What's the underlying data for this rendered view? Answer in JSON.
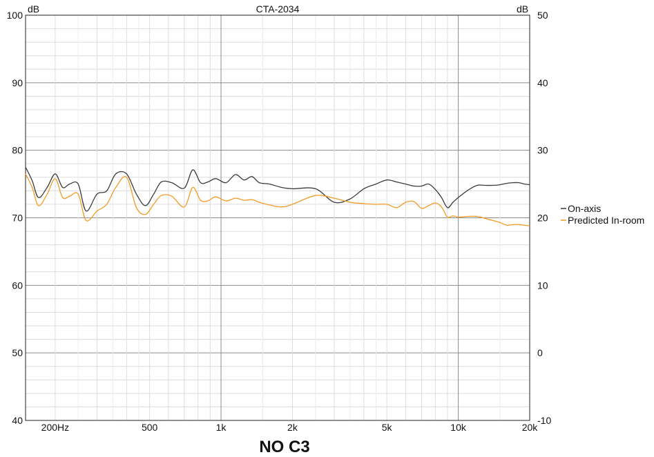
{
  "chart_data": {
    "type": "line",
    "title": "CTA-2034",
    "caption": "NO C3",
    "x_scale": "log",
    "xlim": [
      150,
      20000
    ],
    "ylim_left": [
      40,
      100
    ],
    "ylim_right": [
      -10,
      50
    ],
    "left_unit": "dB",
    "right_unit": "dB",
    "grid": true,
    "legend_position": "right",
    "x_ticks": [
      {
        "value": 200,
        "label": "200Hz"
      },
      {
        "value": 500,
        "label": "500"
      },
      {
        "value": 1000,
        "label": "1k"
      },
      {
        "value": 2000,
        "label": "2k"
      },
      {
        "value": 5000,
        "label": "5k"
      },
      {
        "value": 10000,
        "label": "10k"
      },
      {
        "value": 20000,
        "label": "20k"
      }
    ],
    "y_ticks_left": [
      "100",
      "90",
      "80",
      "70",
      "60",
      "50",
      "40"
    ],
    "y_ticks_right": [
      "50",
      "40",
      "30",
      "20",
      "10",
      "0",
      "-10"
    ],
    "series": [
      {
        "name": "On-axis",
        "color": "#3a3a3a",
        "axis": "left",
        "x": [
          150,
          160,
          170,
          185,
          200,
          215,
          230,
          250,
          270,
          300,
          330,
          360,
          400,
          440,
          480,
          520,
          560,
          620,
          700,
          760,
          820,
          880,
          950,
          1050,
          1150,
          1250,
          1350,
          1450,
          1600,
          1800,
          2000,
          2500,
          3000,
          3500,
          4000,
          4500,
          5000,
          5500,
          6000,
          6500,
          7000,
          7500,
          8000,
          8500,
          9000,
          9500,
          10000,
          11000,
          12000,
          13000,
          14000,
          15000,
          16000,
          17000,
          18000,
          19000,
          20000
        ],
        "y": [
          77.5,
          75.5,
          73.0,
          74.5,
          76.5,
          74.5,
          75.0,
          75.0,
          71.0,
          73.5,
          74.0,
          76.5,
          76.5,
          73.5,
          71.8,
          73.5,
          75.3,
          75.2,
          74.4,
          77.1,
          75.2,
          75.3,
          75.8,
          75.2,
          76.4,
          75.6,
          76.1,
          75.2,
          75.0,
          74.5,
          74.3,
          74.3,
          72.3,
          72.8,
          74.3,
          75.0,
          75.6,
          75.3,
          75.0,
          74.7,
          74.7,
          75.0,
          74.2,
          73.0,
          71.5,
          72.3,
          73.0,
          74.1,
          74.8,
          74.8,
          74.8,
          74.9,
          75.1,
          75.2,
          75.2,
          75.0,
          74.9
        ]
      },
      {
        "name": "Predicted In-room",
        "color": "#f39a22",
        "axis": "left",
        "x": [
          150,
          160,
          170,
          185,
          200,
          215,
          230,
          250,
          270,
          300,
          330,
          360,
          400,
          440,
          480,
          520,
          560,
          620,
          700,
          760,
          820,
          880,
          950,
          1050,
          1150,
          1250,
          1350,
          1450,
          1600,
          1800,
          2000,
          2500,
          3000,
          3500,
          4000,
          4500,
          5000,
          5500,
          6000,
          6500,
          7000,
          7500,
          8000,
          8500,
          9000,
          9500,
          10000,
          11000,
          12000,
          13000,
          14000,
          15000,
          16000,
          17000,
          18000,
          19000,
          20000
        ],
        "y": [
          76.5,
          74.5,
          71.8,
          73.5,
          75.8,
          73.0,
          73.2,
          73.5,
          69.6,
          71.0,
          72.0,
          74.5,
          76.0,
          71.5,
          70.5,
          72.0,
          73.3,
          73.2,
          71.6,
          74.5,
          72.6,
          72.5,
          73.1,
          72.5,
          72.9,
          72.6,
          72.7,
          72.3,
          71.9,
          71.6,
          72.0,
          73.3,
          72.9,
          72.3,
          72.1,
          72.0,
          72.0,
          71.5,
          72.3,
          72.4,
          71.4,
          71.8,
          72.2,
          71.6,
          70.1,
          70.3,
          70.1,
          70.2,
          70.2,
          69.9,
          69.6,
          69.3,
          68.9,
          69.0,
          69.0,
          68.9,
          68.8
        ]
      }
    ]
  }
}
